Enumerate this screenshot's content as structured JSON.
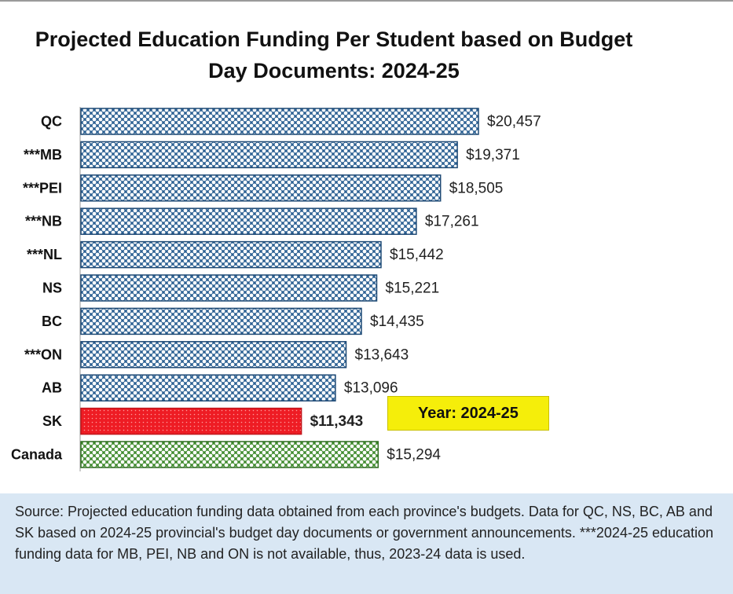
{
  "chart_data": {
    "type": "bar",
    "orientation": "horizontal",
    "title": "Projected Education Funding Per Student based on Budget Day Documents: 2024-25",
    "categories": [
      "QC",
      "***MB",
      "***PEI",
      "***NB",
      "***NL",
      "NS",
      "BC",
      "***ON",
      "AB",
      "SK",
      "Canada"
    ],
    "values": [
      20457,
      19371,
      18505,
      17261,
      15442,
      15221,
      14435,
      13643,
      13096,
      11343,
      15294
    ],
    "value_labels": [
      "$20,457",
      "$19,371",
      "$18,505",
      "$17,261",
      "$15,442",
      "$15,221",
      "$14,435",
      "$13,643",
      "$13,096",
      "$11,343",
      "$15,294"
    ],
    "colors": [
      "#2a5f92",
      "#2a5f92",
      "#2a5f92",
      "#2a5f92",
      "#2a5f92",
      "#2a5f92",
      "#2a5f92",
      "#2a5f92",
      "#2a5f92",
      "#ee1c24",
      "#3e8a2c"
    ],
    "highlight": [
      "SK"
    ],
    "grid": false,
    "legend": false
  },
  "annotation": "Year: 2024-25",
  "source_note": "Source: Projected education funding data obtained from each province's budgets. Data for QC, NS, BC, AB and SK based on 2024-25 provincial's budget day documents or government announcements. ***2024-25 education funding data for MB, PEI, NB and ON is not available, thus, 2023-24 data is used."
}
